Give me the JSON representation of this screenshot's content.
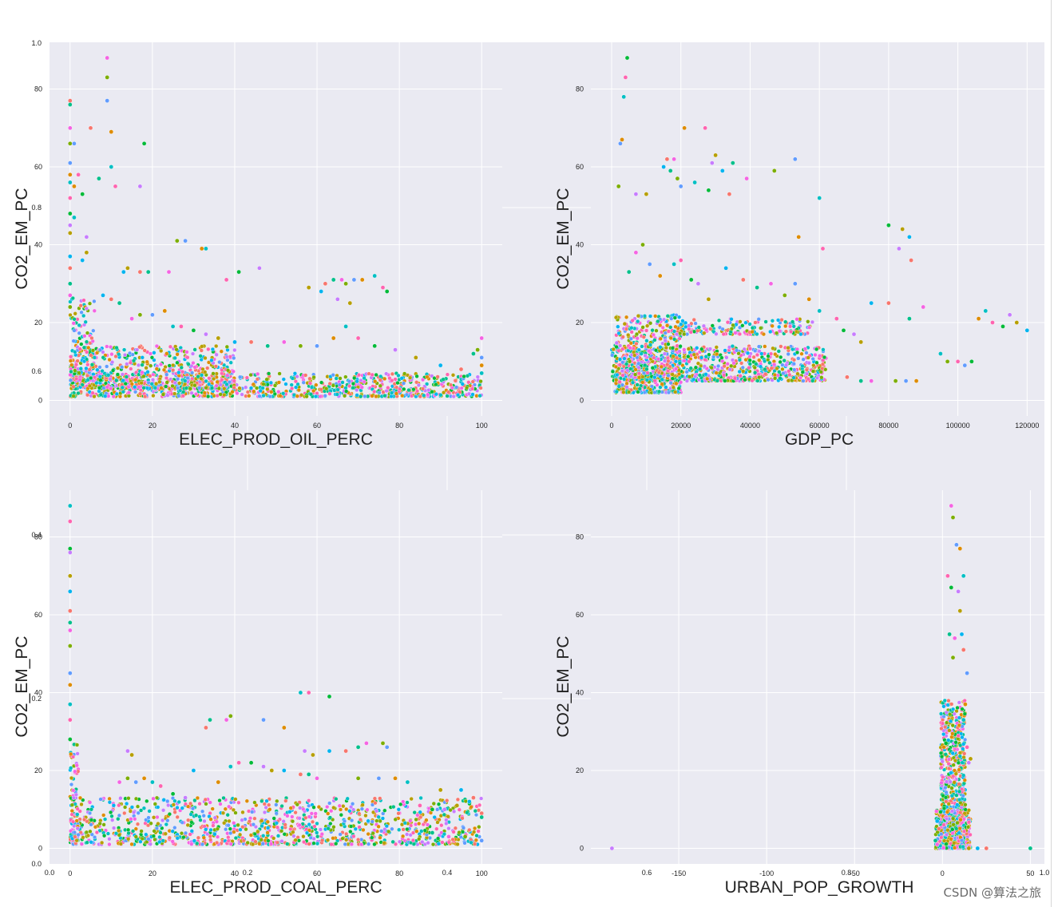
{
  "figure": {
    "watermark": "CSDN @算法之旅",
    "background_frame_ticks": {
      "y": [
        "1.0",
        "0.8",
        "0.6",
        "0.4",
        "0.2",
        "0.0"
      ],
      "x": [
        "0.0",
        "0.2",
        "0.4",
        "0.6",
        "0.8",
        "1.0"
      ]
    }
  },
  "colors": {
    "panel_bg": "#EAEAF2",
    "grid": "#FFFFFF",
    "palette": [
      "#F8766D",
      "#DE8C00",
      "#B79F00",
      "#7CAE00",
      "#00BA38",
      "#00C08B",
      "#00BFC4",
      "#00B4F0",
      "#619CFF",
      "#C77CFF",
      "#F564E3",
      "#FF64B0"
    ]
  },
  "chart_data": [
    {
      "type": "scatter",
      "xlabel": "ELEC_PROD_OIL_PERC",
      "ylabel": "CO2_EM_PC",
      "xlim": [
        -5,
        105
      ],
      "ylim": [
        -4,
        92
      ],
      "xticks": [
        0,
        20,
        40,
        60,
        80,
        100
      ],
      "yticks": [
        0,
        20,
        40,
        60,
        80
      ],
      "points": [
        [
          0,
          77
        ],
        [
          0,
          76
        ],
        [
          0,
          70
        ],
        [
          0,
          66
        ],
        [
          0,
          61
        ],
        [
          0,
          58
        ],
        [
          0,
          56
        ],
        [
          0,
          52
        ],
        [
          0,
          48
        ],
        [
          0,
          45
        ],
        [
          0,
          43
        ],
        [
          0,
          37
        ],
        [
          0,
          34
        ],
        [
          0,
          30
        ],
        [
          0,
          27
        ],
        [
          0,
          24
        ],
        [
          1,
          66
        ],
        [
          1,
          55
        ],
        [
          1,
          47
        ],
        [
          2,
          58
        ],
        [
          3,
          53
        ],
        [
          4,
          42
        ],
        [
          4,
          38
        ],
        [
          3,
          36
        ],
        [
          5,
          70
        ],
        [
          7,
          57
        ],
        [
          9,
          88
        ],
        [
          9,
          83
        ],
        [
          9,
          77
        ],
        [
          10,
          69
        ],
        [
          10,
          60
        ],
        [
          11,
          55
        ],
        [
          18,
          66
        ],
        [
          17,
          55
        ],
        [
          14,
          34
        ],
        [
          13,
          33
        ],
        [
          17,
          33
        ],
        [
          19,
          33
        ],
        [
          24,
          33
        ],
        [
          26,
          41
        ],
        [
          28,
          41
        ],
        [
          32,
          39
        ],
        [
          33,
          39
        ],
        [
          38,
          31
        ],
        [
          41,
          33
        ],
        [
          46,
          34
        ],
        [
          58,
          29
        ],
        [
          61,
          28
        ],
        [
          62,
          30
        ],
        [
          64,
          31
        ],
        [
          66,
          31
        ],
        [
          67,
          30
        ],
        [
          69,
          31
        ],
        [
          71,
          31
        ],
        [
          74,
          32
        ],
        [
          76,
          29
        ],
        [
          77,
          28
        ],
        [
          65,
          26
        ],
        [
          68,
          25
        ],
        [
          8,
          27
        ],
        [
          10,
          26
        ],
        [
          12,
          25
        ],
        [
          15,
          21
        ],
        [
          17,
          22
        ],
        [
          20,
          22
        ],
        [
          23,
          23
        ],
        [
          25,
          19
        ],
        [
          27,
          19
        ],
        [
          30,
          18
        ],
        [
          33,
          17
        ],
        [
          36,
          16
        ],
        [
          40,
          15
        ],
        [
          44,
          15
        ],
        [
          48,
          14
        ],
        [
          52,
          15
        ],
        [
          56,
          14
        ],
        [
          60,
          14
        ],
        [
          64,
          16
        ],
        [
          67,
          19
        ],
        [
          70,
          16
        ],
        [
          74,
          14
        ],
        [
          79,
          13
        ],
        [
          84,
          11
        ],
        [
          90,
          9
        ],
        [
          95,
          8
        ],
        [
          98,
          12
        ],
        [
          100,
          16
        ],
        [
          99,
          13
        ],
        [
          100,
          11
        ],
        [
          100,
          9
        ],
        [
          100,
          7
        ]
      ],
      "dense_bands": [
        {
          "x_min": 0,
          "x_max": 100,
          "y_base": 1,
          "y_spread": 6,
          "count": 900
        },
        {
          "x_min": 0,
          "x_max": 40,
          "y_base": 3,
          "y_spread": 11,
          "count": 600
        },
        {
          "x_min": 0,
          "x_max": 6,
          "y_base": 5,
          "y_spread": 22,
          "count": 120
        }
      ]
    },
    {
      "type": "scatter",
      "xlabel": "GDP_PC",
      "ylabel": "CO2_EM_PC",
      "xlim": [
        -6000,
        125000
      ],
      "ylim": [
        -4,
        92
      ],
      "xticks": [
        0,
        20000,
        40000,
        60000,
        80000,
        100000,
        120000
      ],
      "yticks": [
        0,
        20,
        40,
        60,
        80
      ],
      "points": [
        [
          2000,
          55
        ],
        [
          2500,
          66
        ],
        [
          3000,
          67
        ],
        [
          3500,
          78
        ],
        [
          4000,
          83
        ],
        [
          4500,
          88
        ],
        [
          7000,
          53
        ],
        [
          10000,
          53
        ],
        [
          15000,
          60
        ],
        [
          16000,
          62
        ],
        [
          17000,
          59
        ],
        [
          18000,
          62
        ],
        [
          19000,
          57
        ],
        [
          20000,
          55
        ],
        [
          21000,
          70
        ],
        [
          24000,
          56
        ],
        [
          27000,
          70
        ],
        [
          28000,
          54
        ],
        [
          29000,
          61
        ],
        [
          30000,
          63
        ],
        [
          32000,
          59
        ],
        [
          34000,
          53
        ],
        [
          35000,
          61
        ],
        [
          39000,
          57
        ],
        [
          47000,
          59
        ],
        [
          53000,
          62
        ],
        [
          54000,
          42
        ],
        [
          60000,
          52
        ],
        [
          61000,
          39
        ],
        [
          80000,
          45
        ],
        [
          83000,
          39
        ],
        [
          84000,
          44
        ],
        [
          86000,
          42
        ],
        [
          86500,
          36
        ],
        [
          5000,
          33
        ],
        [
          7000,
          38
        ],
        [
          9000,
          40
        ],
        [
          11000,
          35
        ],
        [
          14000,
          32
        ],
        [
          18000,
          35
        ],
        [
          20000,
          36
        ],
        [
          23000,
          31
        ],
        [
          25000,
          30
        ],
        [
          28000,
          26
        ],
        [
          33000,
          34
        ],
        [
          38000,
          31
        ],
        [
          42000,
          29
        ],
        [
          46000,
          30
        ],
        [
          50000,
          27
        ],
        [
          53000,
          30
        ],
        [
          57000,
          26
        ],
        [
          60000,
          23
        ],
        [
          65000,
          21
        ],
        [
          67000,
          18
        ],
        [
          70000,
          17
        ],
        [
          72000,
          15
        ],
        [
          75000,
          25
        ],
        [
          80000,
          25
        ],
        [
          86000,
          21
        ],
        [
          90000,
          24
        ],
        [
          97000,
          10
        ],
        [
          102000,
          9
        ],
        [
          106000,
          21
        ],
        [
          108000,
          23
        ],
        [
          110000,
          20
        ],
        [
          113000,
          19
        ],
        [
          115000,
          22
        ],
        [
          117000,
          20
        ],
        [
          120000,
          18
        ],
        [
          68000,
          6
        ],
        [
          72000,
          5
        ],
        [
          75000,
          5
        ],
        [
          82000,
          5
        ],
        [
          85000,
          5
        ],
        [
          88000,
          5
        ],
        [
          95000,
          12
        ],
        [
          100000,
          10
        ],
        [
          104000,
          10
        ]
      ],
      "dense_bands": [
        {
          "x_min": 0,
          "x_max": 62000,
          "y_base": 5,
          "y_spread": 9,
          "count": 900
        },
        {
          "x_min": 1000,
          "x_max": 20000,
          "y_base": 2,
          "y_spread": 20,
          "count": 500
        },
        {
          "x_min": 15000,
          "x_max": 58000,
          "y_base": 17,
          "y_spread": 4,
          "count": 180
        }
      ]
    },
    {
      "type": "scatter",
      "xlabel": "ELEC_PROD_COAL_PERC",
      "ylabel": "CO2_EM_PC",
      "xlim": [
        -5,
        105
      ],
      "ylim": [
        -4,
        92
      ],
      "xticks": [
        0,
        20,
        40,
        60,
        80,
        100
      ],
      "yticks": [
        0,
        20,
        40,
        60,
        80
      ],
      "points": [
        [
          0,
          88
        ],
        [
          0,
          84
        ],
        [
          0,
          77
        ],
        [
          0,
          76
        ],
        [
          0,
          70
        ],
        [
          0,
          66
        ],
        [
          0,
          61
        ],
        [
          0,
          58
        ],
        [
          0,
          56
        ],
        [
          0,
          52
        ],
        [
          0,
          45
        ],
        [
          0,
          42
        ],
        [
          0,
          37
        ],
        [
          0,
          33
        ],
        [
          0,
          28
        ],
        [
          14,
          25
        ],
        [
          15,
          24
        ],
        [
          30,
          20
        ],
        [
          33,
          31
        ],
        [
          34,
          33
        ],
        [
          38,
          33
        ],
        [
          39,
          34
        ],
        [
          47,
          33
        ],
        [
          52,
          31
        ],
        [
          56,
          40
        ],
        [
          58,
          40
        ],
        [
          63,
          39
        ],
        [
          57,
          25
        ],
        [
          59,
          24
        ],
        [
          63,
          25
        ],
        [
          67,
          25
        ],
        [
          70,
          26
        ],
        [
          72,
          27
        ],
        [
          76,
          27
        ],
        [
          77,
          26
        ],
        [
          36,
          17
        ],
        [
          39,
          21
        ],
        [
          41,
          22
        ],
        [
          44,
          22
        ],
        [
          47,
          21
        ],
        [
          49,
          20
        ],
        [
          52,
          20
        ],
        [
          56,
          19
        ],
        [
          58,
          19
        ],
        [
          60,
          18
        ],
        [
          70,
          18
        ],
        [
          75,
          18
        ],
        [
          79,
          18
        ],
        [
          82,
          17
        ],
        [
          85,
          11
        ],
        [
          88,
          10
        ],
        [
          91,
          10
        ],
        [
          94,
          11
        ],
        [
          97,
          12
        ],
        [
          100,
          9
        ],
        [
          100,
          8
        ],
        [
          12,
          17
        ],
        [
          14,
          18
        ],
        [
          16,
          17
        ],
        [
          18,
          18
        ],
        [
          20,
          17
        ],
        [
          22,
          16
        ],
        [
          25,
          14
        ],
        [
          28,
          13
        ],
        [
          90,
          15
        ],
        [
          95,
          15
        ],
        [
          98,
          13
        ],
        [
          88,
          4
        ],
        [
          92,
          3
        ],
        [
          96,
          3
        ],
        [
          100,
          2
        ]
      ],
      "dense_bands": [
        {
          "x_min": 0,
          "x_max": 100,
          "y_base": 1,
          "y_spread": 12,
          "count": 1100
        },
        {
          "x_min": 0,
          "x_max": 2,
          "y_base": 2,
          "y_spread": 25,
          "count": 80
        }
      ]
    },
    {
      "type": "scatter",
      "xlabel": "URBAN_POP_GROWTH",
      "ylabel": "CO2_EM_PC",
      "xlim": [
        -200,
        58
      ],
      "ylim": [
        -4,
        92
      ],
      "xticks": [
        -150,
        -100,
        -50,
        0,
        50
      ],
      "yticks": [
        0,
        20,
        40,
        60,
        80
      ],
      "points": [
        [
          -188,
          0
        ],
        [
          15,
          0
        ],
        [
          20,
          0
        ],
        [
          25,
          0
        ],
        [
          50,
          0
        ],
        [
          5,
          88
        ],
        [
          6,
          85
        ],
        [
          8,
          78
        ],
        [
          10,
          77
        ],
        [
          12,
          70
        ],
        [
          3,
          70
        ],
        [
          5,
          67
        ],
        [
          9,
          66
        ],
        [
          10,
          61
        ],
        [
          11,
          55
        ],
        [
          12,
          51
        ],
        [
          4,
          55
        ],
        [
          7,
          54
        ],
        [
          6,
          49
        ],
        [
          14,
          45
        ],
        [
          13,
          37
        ],
        [
          12,
          33
        ],
        [
          14,
          26
        ],
        [
          2,
          27
        ],
        [
          15,
          22
        ],
        [
          16,
          23
        ],
        [
          -3,
          7
        ],
        [
          -2,
          5
        ],
        [
          -4,
          2
        ],
        [
          -3,
          1
        ]
      ],
      "dense_bands": [
        {
          "x_min": -1,
          "x_max": 13,
          "y_base": 0,
          "y_spread": 38,
          "count": 800
        },
        {
          "x_min": -4,
          "x_max": 16,
          "y_base": 0,
          "y_spread": 10,
          "count": 400
        }
      ]
    }
  ]
}
